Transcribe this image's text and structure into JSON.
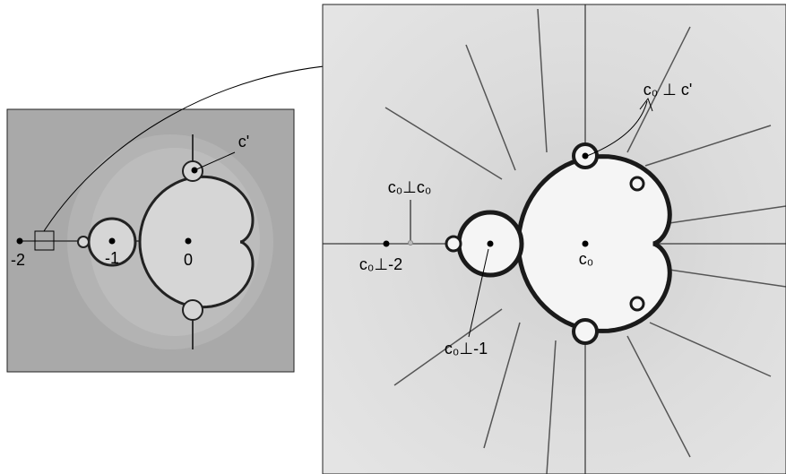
{
  "left_panel": {
    "labels": [
      "c'",
      "-2",
      "-1",
      "0"
    ]
  },
  "right_panel": {
    "labels": [
      "c₀ ⊥ c'",
      "c₀⊥c₀",
      "c₀⊥-2",
      "c₀",
      "c₀⊥-1"
    ]
  }
}
